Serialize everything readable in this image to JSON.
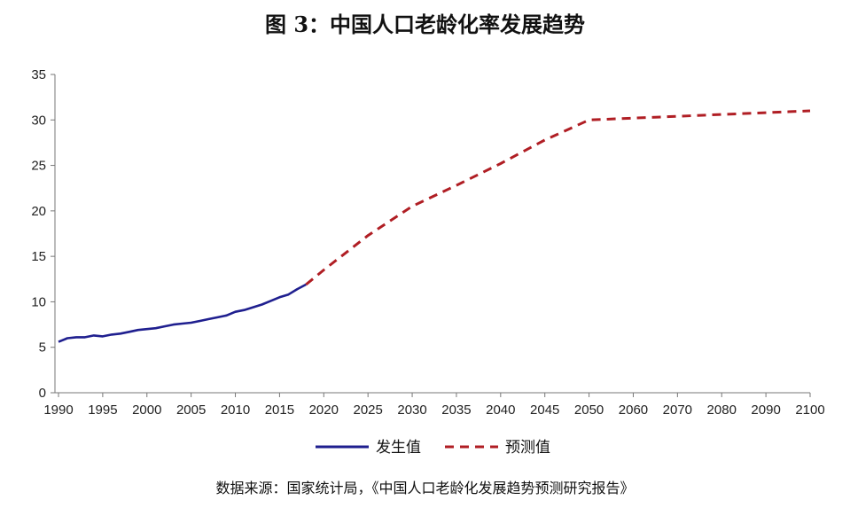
{
  "title": "图 3：中国人口老龄化率发展趋势",
  "source": "数据来源：国家统计局，《中国人口老龄化发展趋势预测研究报告》",
  "chart_data": {
    "type": "line",
    "title": "图 3：中国人口老龄化率发展趋势",
    "xlabel": "",
    "ylabel": "",
    "ylim": [
      0,
      35
    ],
    "yticks": [
      "0",
      "5",
      "10",
      "15",
      "20",
      "25",
      "30",
      "35"
    ],
    "xticks": [
      "1990",
      "1995",
      "2000",
      "2005",
      "2010",
      "2015",
      "2020",
      "2025",
      "2030",
      "2035",
      "2040",
      "2045",
      "2050",
      "2060",
      "2070",
      "2080",
      "2090",
      "2100"
    ],
    "grid": false,
    "legend": "bottom",
    "series": [
      {
        "name": "发生值",
        "color": "#1f1f8f",
        "style": "solid",
        "x": [
          "1990",
          "1991",
          "1992",
          "1993",
          "1994",
          "1995",
          "1996",
          "1997",
          "1998",
          "1999",
          "2000",
          "2001",
          "2002",
          "2003",
          "2004",
          "2005",
          "2006",
          "2007",
          "2008",
          "2009",
          "2010",
          "2011",
          "2012",
          "2013",
          "2014",
          "2015",
          "2016",
          "2017",
          "2018"
        ],
        "values": [
          5.6,
          6.0,
          6.1,
          6.1,
          6.3,
          6.2,
          6.4,
          6.5,
          6.7,
          6.9,
          7.0,
          7.1,
          7.3,
          7.5,
          7.6,
          7.7,
          7.9,
          8.1,
          8.3,
          8.5,
          8.9,
          9.1,
          9.4,
          9.7,
          10.1,
          10.5,
          10.8,
          11.4,
          11.9
        ]
      },
      {
        "name": "预测值",
        "color": "#b01e24",
        "style": "dashed",
        "x": [
          "2018",
          "2020",
          "2025",
          "2030",
          "2035",
          "2040",
          "2045",
          "2050",
          "2060",
          "2070",
          "2080",
          "2090",
          "2100"
        ],
        "values": [
          11.9,
          13.5,
          17.3,
          20.5,
          22.8,
          25.2,
          27.8,
          30.0,
          30.2,
          30.4,
          30.6,
          30.8,
          31.0
        ]
      }
    ]
  }
}
